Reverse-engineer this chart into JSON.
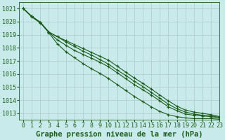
{
  "title": "Graphe pression niveau de la mer (hPa)",
  "background_color": "#c8eaea",
  "grid_color": "#b0c8c8",
  "line_color": "#1a5c1a",
  "xlim": [
    -0.5,
    23
  ],
  "ylim": [
    1012.5,
    1021.5
  ],
  "xticks": [
    0,
    1,
    2,
    3,
    4,
    5,
    6,
    7,
    8,
    9,
    10,
    11,
    12,
    13,
    14,
    15,
    16,
    17,
    18,
    19,
    20,
    21,
    22,
    23
  ],
  "yticks": [
    1013,
    1014,
    1015,
    1016,
    1017,
    1018,
    1019,
    1020,
    1021
  ],
  "series": [
    [
      1021.0,
      1020.4,
      1019.95,
      1019.2,
      1018.85,
      1018.55,
      1018.25,
      1017.95,
      1017.65,
      1017.35,
      1017.05,
      1016.6,
      1016.15,
      1015.7,
      1015.3,
      1014.85,
      1014.4,
      1013.95,
      1013.55,
      1013.25,
      1013.1,
      1013.0,
      1012.9,
      1012.75
    ],
    [
      1021.0,
      1020.4,
      1019.95,
      1019.2,
      1018.6,
      1018.2,
      1017.8,
      1017.5,
      1017.2,
      1016.9,
      1016.55,
      1016.1,
      1015.65,
      1015.2,
      1014.8,
      1014.4,
      1013.95,
      1013.5,
      1013.2,
      1012.95,
      1012.85,
      1012.8,
      1012.75,
      1012.65
    ],
    [
      1021.0,
      1020.35,
      1019.9,
      1019.15,
      1018.3,
      1017.7,
      1017.25,
      1016.8,
      1016.4,
      1016.05,
      1015.65,
      1015.2,
      1014.75,
      1014.3,
      1013.9,
      1013.5,
      1013.15,
      1012.9,
      1012.75,
      1012.65,
      1012.6,
      1012.6,
      1012.6,
      1012.55
    ],
    [
      1021.0,
      1020.4,
      1019.95,
      1019.2,
      1018.85,
      1018.45,
      1018.1,
      1017.75,
      1017.45,
      1017.1,
      1016.75,
      1016.3,
      1015.9,
      1015.45,
      1015.05,
      1014.6,
      1014.15,
      1013.7,
      1013.35,
      1013.1,
      1012.95,
      1012.85,
      1012.8,
      1012.7
    ]
  ],
  "title_fontsize": 7.5,
  "tick_fontsize": 6,
  "line_width": 0.8,
  "marker_size": 2.5
}
